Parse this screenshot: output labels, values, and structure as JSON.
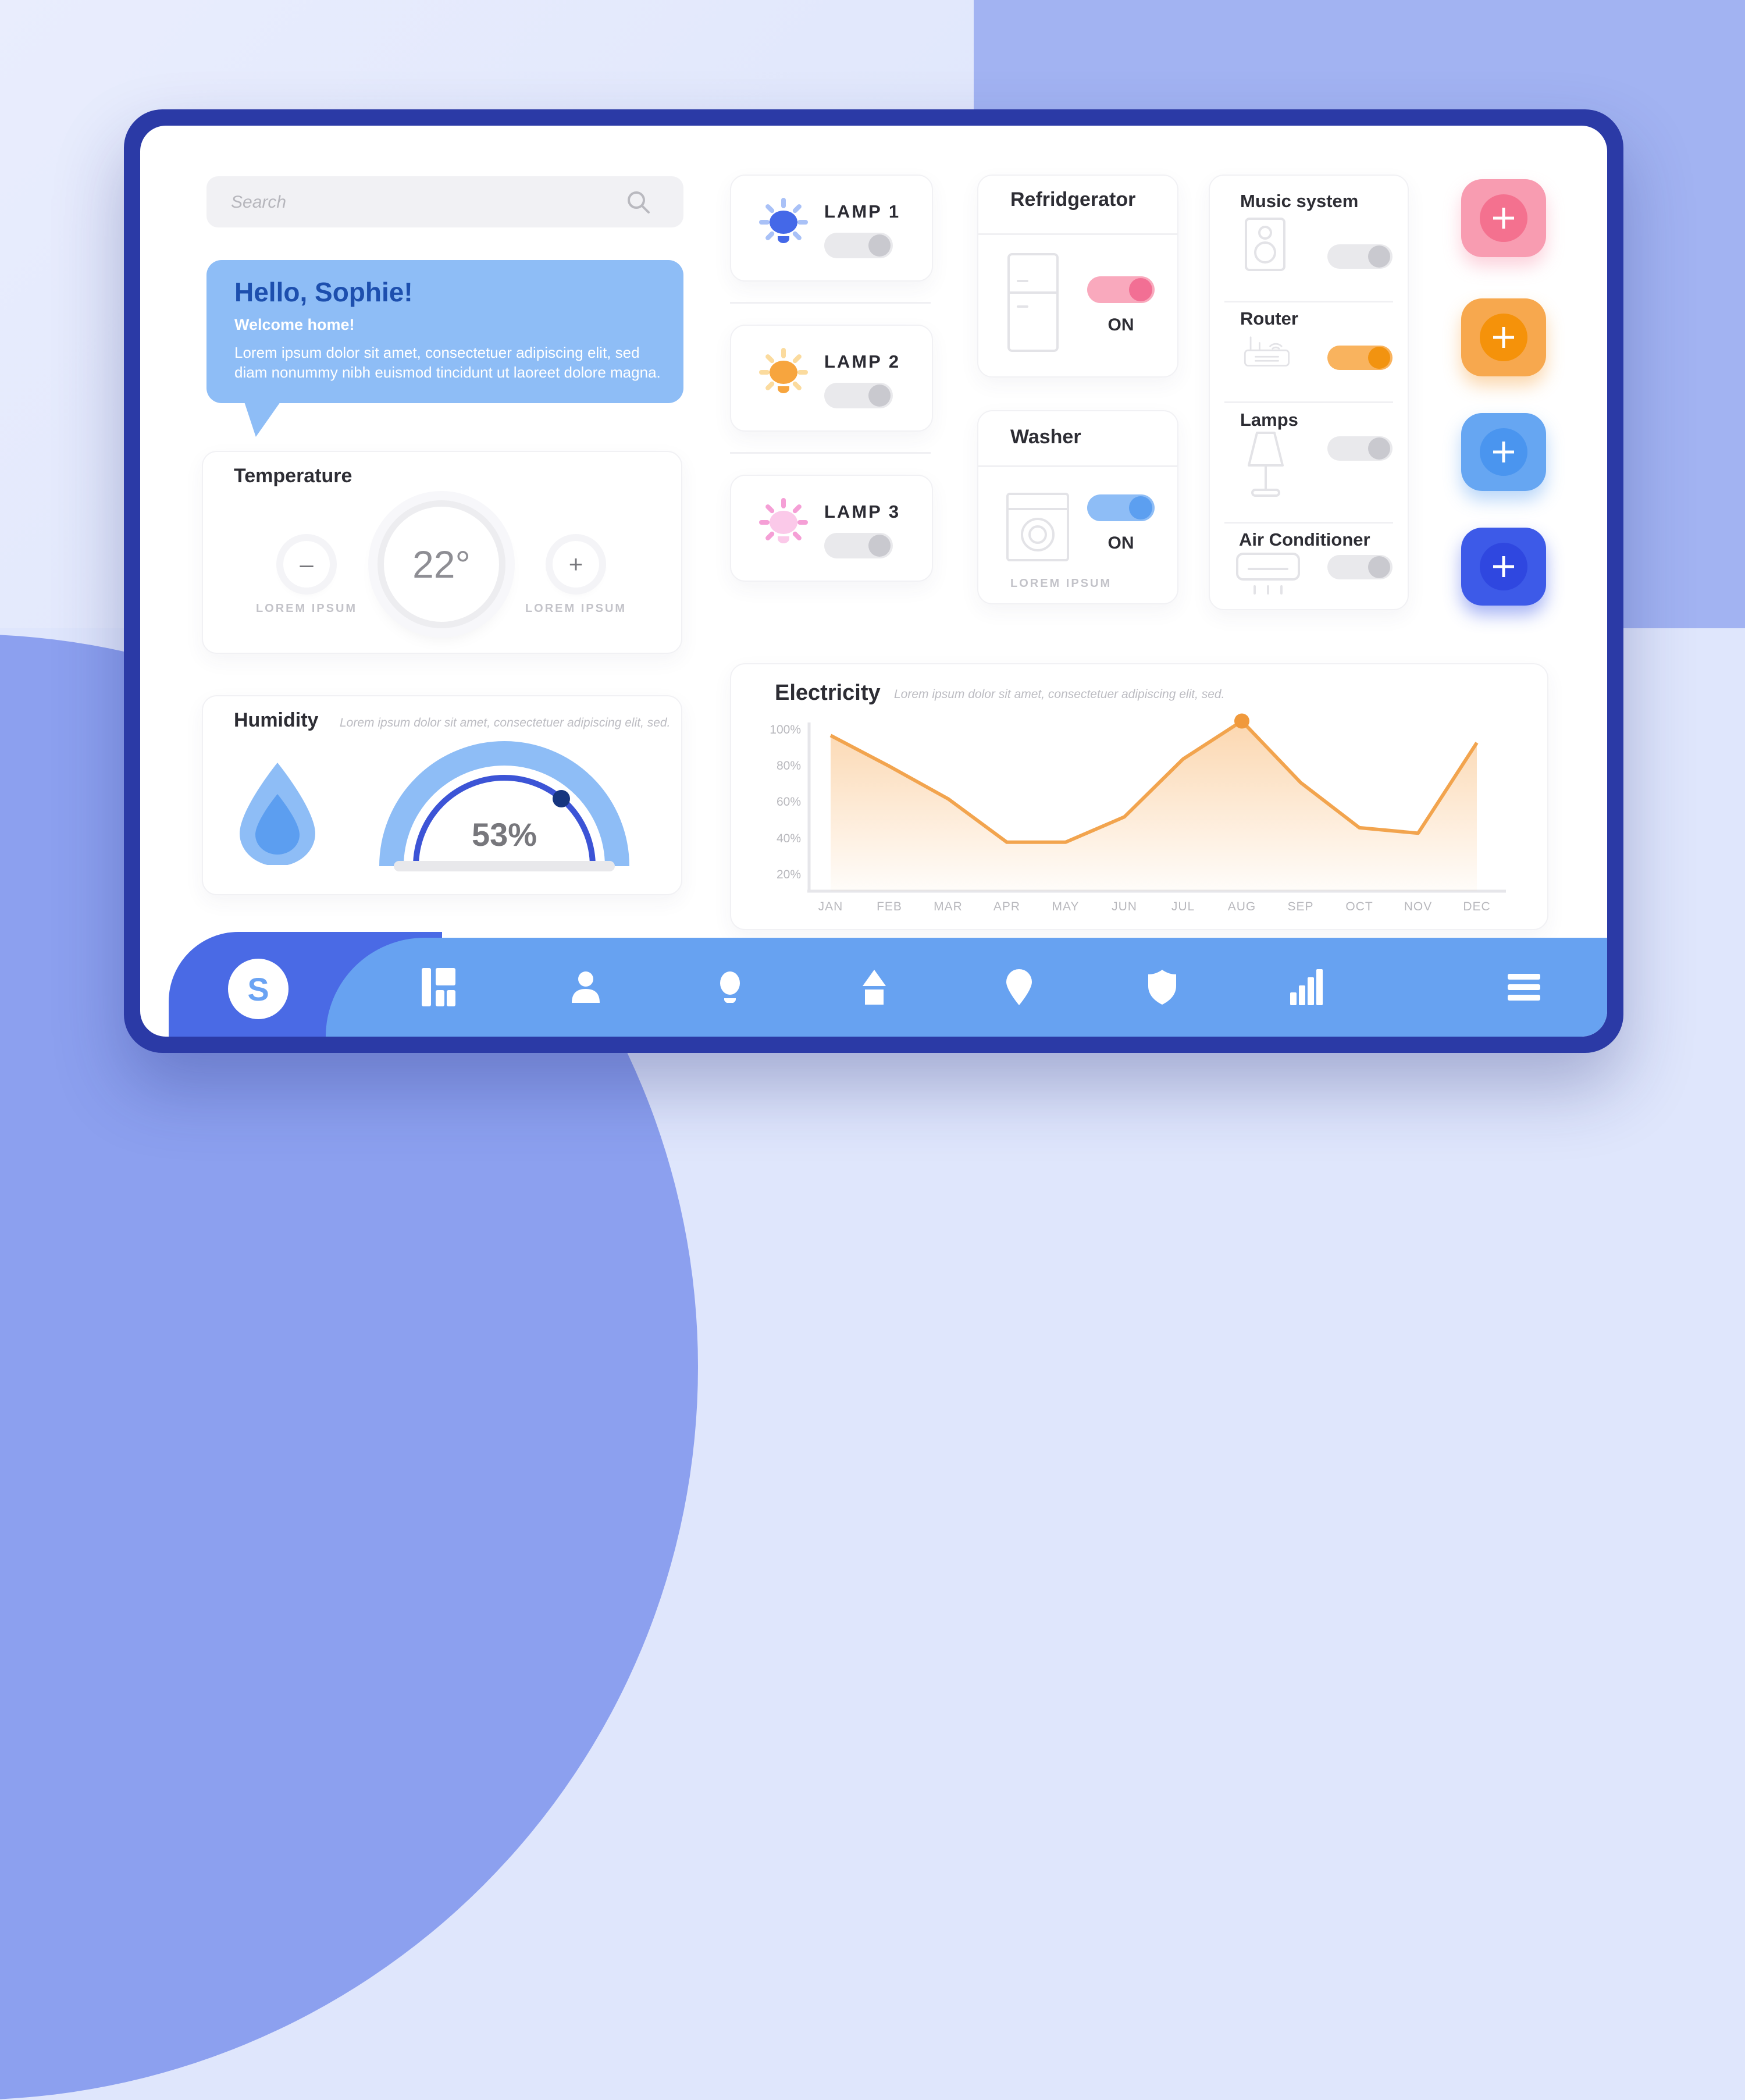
{
  "logo": {
    "letter": "S"
  },
  "search": {
    "placeholder": "Search"
  },
  "greeting": {
    "title": "Hello, Sophie!",
    "subtitle": "Welcome home!",
    "body": "Lorem ipsum dolor sit amet, consectetuer adipiscing elit, sed diam nonummy nibh euismod tincidunt ut laoreet dolore magna."
  },
  "temperature": {
    "title": "Temperature",
    "value": "22°",
    "minus_label": "LOREM IPSUM",
    "plus_label": "LOREM IPSUM"
  },
  "humidity": {
    "title": "Humidity",
    "subtitle": "Lorem ipsum dolor sit amet, consectetuer adipiscing elit, sed.",
    "value": "53%"
  },
  "lamps": [
    {
      "label": "LAMP 1",
      "state": "off",
      "bulb_color": "#4468e8"
    },
    {
      "label": "LAMP 2",
      "state": "off",
      "bulb_color": "#f7a53e"
    },
    {
      "label": "LAMP 3",
      "state": "off",
      "bulb_color": "#fbc9e9"
    }
  ],
  "refrigerator": {
    "title": "Refridgerator",
    "state_label": "ON",
    "state": "on",
    "toggle_color": "#f9a9bd"
  },
  "washer": {
    "title": "Washer",
    "state_label": "ON",
    "state": "on",
    "footer": "LOREM IPSUM",
    "toggle_color": "#8ebdf6"
  },
  "devices": [
    {
      "label": "Music system",
      "state": "off"
    },
    {
      "label": "Router",
      "state": "on",
      "toggle_color": "#f9b35e"
    },
    {
      "label": "Lamps",
      "state": "off"
    },
    {
      "label": "Air Conditioner",
      "state": "off"
    }
  ],
  "add_buttons": [
    {
      "icon": "plus-icon",
      "color": "#f89cb1"
    },
    {
      "icon": "plus-icon",
      "color": "#f7a84e"
    },
    {
      "icon": "plus-icon",
      "color": "#66a6f2"
    },
    {
      "icon": "plus-icon",
      "color": "#3d5ae8"
    }
  ],
  "nav": {
    "icons": [
      "kanban-board-icon",
      "person-icon",
      "lightbulb-icon",
      "home-icon",
      "location-pin-icon",
      "shield-icon",
      "bar-chart-icon",
      "hamburger-menu-icon"
    ]
  },
  "chart_data": {
    "type": "area",
    "title": "Electricity",
    "subtitle": "Lorem ipsum dolor sit amet, consectetuer adipiscing elit, sed.",
    "categories": [
      "JAN",
      "FEB",
      "MAR",
      "APR",
      "MAY",
      "JUN",
      "JUL",
      "AUG",
      "SEP",
      "OCT",
      "NOV",
      "DEC"
    ],
    "values": [
      97,
      80,
      62,
      38,
      38,
      52,
      84,
      105,
      71,
      46,
      43,
      93
    ],
    "unit": "%",
    "y_ticks": [
      100,
      80,
      60,
      40,
      20
    ],
    "ylim": [
      0,
      110
    ],
    "marker_index": 7,
    "xlabel": "",
    "ylabel": "",
    "line_color": "#f2a44e",
    "marker_color": "#f0993c",
    "grid": false,
    "legend": false
  }
}
